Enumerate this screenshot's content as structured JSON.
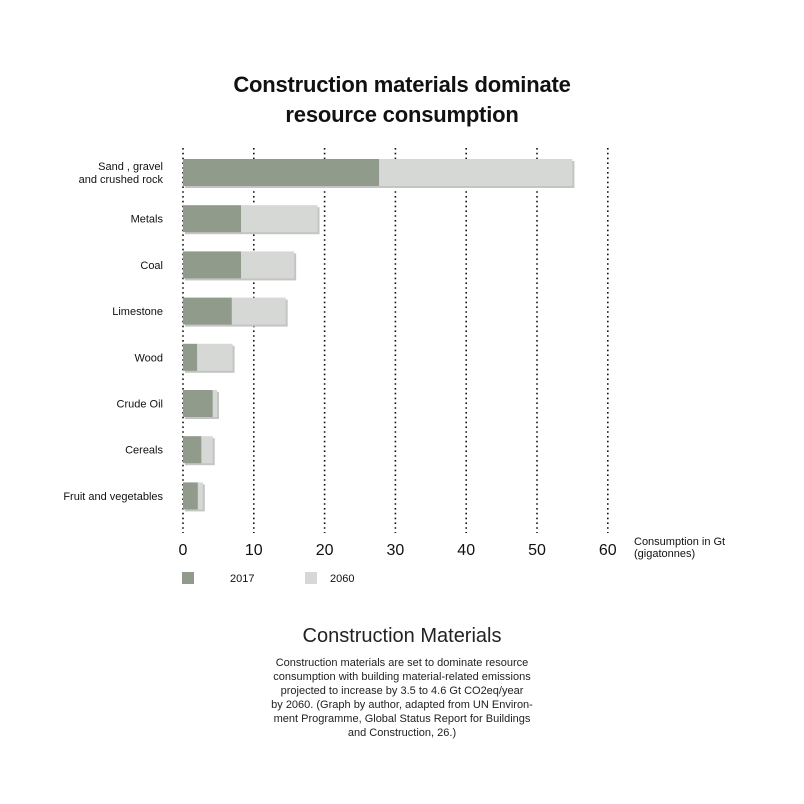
{
  "chart_data": {
    "type": "bar",
    "stacked": true,
    "orientation": "horizontal",
    "title": [
      "Construction materials dominate",
      "resource consumption"
    ],
    "categories": [
      [
        "Sand , gravel",
        "and crushed rock"
      ],
      [
        "Metals"
      ],
      [
        "Coal"
      ],
      [
        "Limestone"
      ],
      [
        "Wood"
      ],
      [
        "Crude Oil"
      ],
      [
        "Cereals"
      ],
      [
        "Fruit and vegetables"
      ]
    ],
    "series": [
      {
        "name": "2017",
        "color": "#919b8b",
        "values": [
          27.7,
          8.2,
          8.2,
          6.9,
          2.0,
          4.2,
          2.6,
          2.1
        ]
      },
      {
        "name": "2060",
        "color": "#d6d8d5",
        "values": [
          27.3,
          10.8,
          7.5,
          7.6,
          5.0,
          0.6,
          1.6,
          0.7
        ]
      }
    ],
    "x_ticks": [
      "0",
      "10",
      "20",
      "30",
      "40",
      "50",
      "60"
    ],
    "xlim": [
      0,
      60
    ],
    "xlabel": [
      "Consumption in Gt",
      "(gigatonnes)"
    ],
    "grid": "vertical dotted",
    "legend_position": "bottom-left"
  },
  "caption": {
    "title": "Construction Materials",
    "lines": [
      "Construction materials are set to dominate resource",
      "consumption with building material-related emissions",
      "projected to increase by 3.5 to 4.6 Gt CO2eq/year",
      "by 2060.  (Graph by author, adapted from UN Environ-",
      "ment Programme, Global Status Report for Buildings",
      "and Construction, 26.)"
    ]
  }
}
